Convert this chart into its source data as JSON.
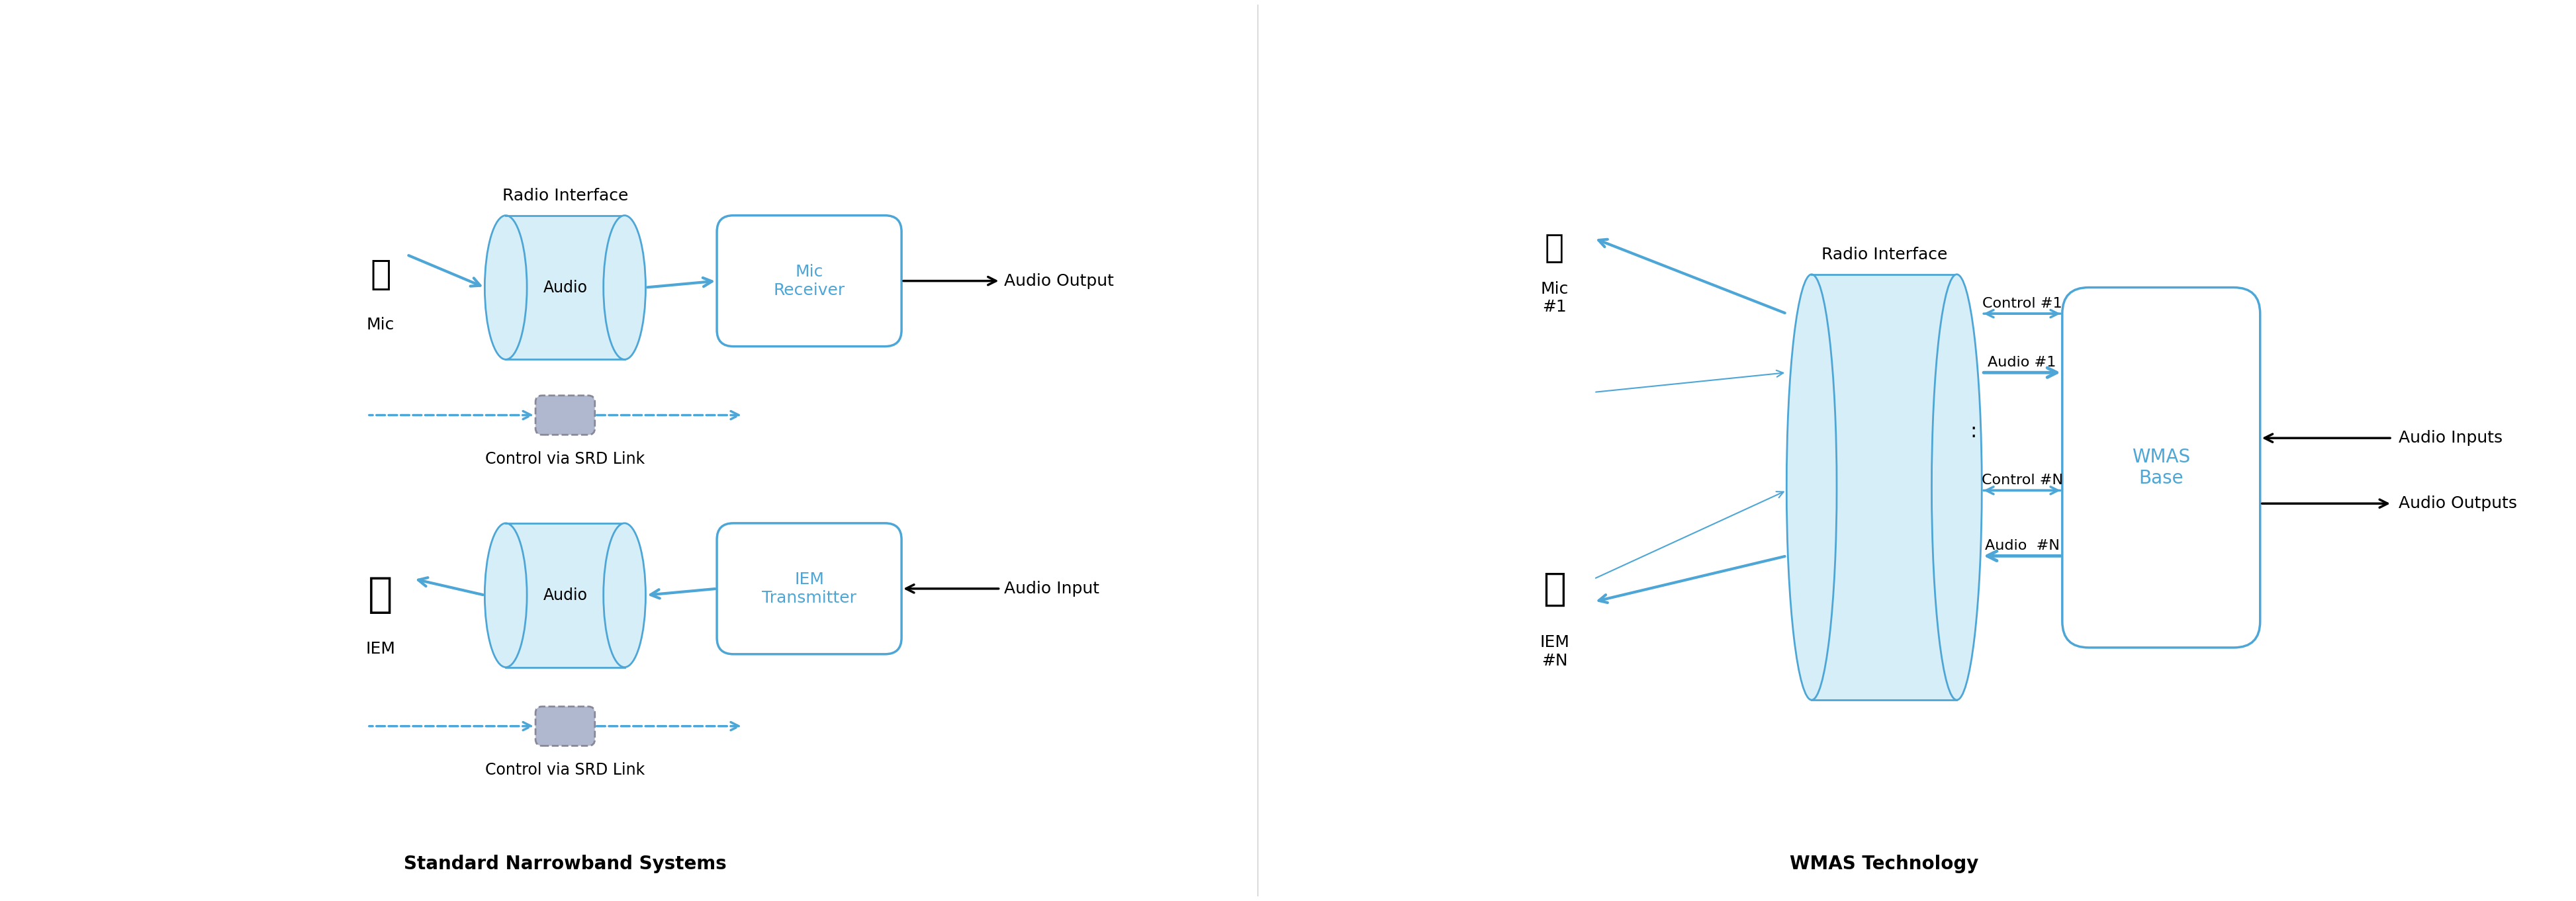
{
  "bg_color": "#ffffff",
  "blue_color": "#4da6d6",
  "light_blue_fill": "#d6eef8",
  "blue_arrow": "#4da6d6",
  "black": "#000000",
  "gray_fill": "#a0a8c0",
  "dashed_box_color": "#888899",
  "title_left": "Standard Narrowband Systems",
  "title_right": "WMAS Technology",
  "radio_interface_label": "Radio Interface",
  "mic_label": "Mic",
  "iem_label": "IEM",
  "mic_receiver_label": "Mic\nReceiver",
  "iem_transmitter_label": "IEM\nTransmitter",
  "audio_output_label": "Audio Output",
  "audio_input_label": "Audio Input",
  "control_srd_label": "Control via SRD Link",
  "audio_label": "Audio",
  "mic1_label": "Mic\n#1",
  "iem_n_label": "IEM\n#N",
  "control1_label": "Control #1",
  "audio1_label": "Audio #1",
  "control_n_label": "Control #N",
  "audio_n_label": "Audio  #N",
  "wmas_base_label": "WMAS\nBase",
  "audio_inputs_label": "Audio Inputs",
  "audio_outputs_label": "Audio Outputs",
  "radio_interface_label2": "Radio Interface",
  "dots_label": ":"
}
